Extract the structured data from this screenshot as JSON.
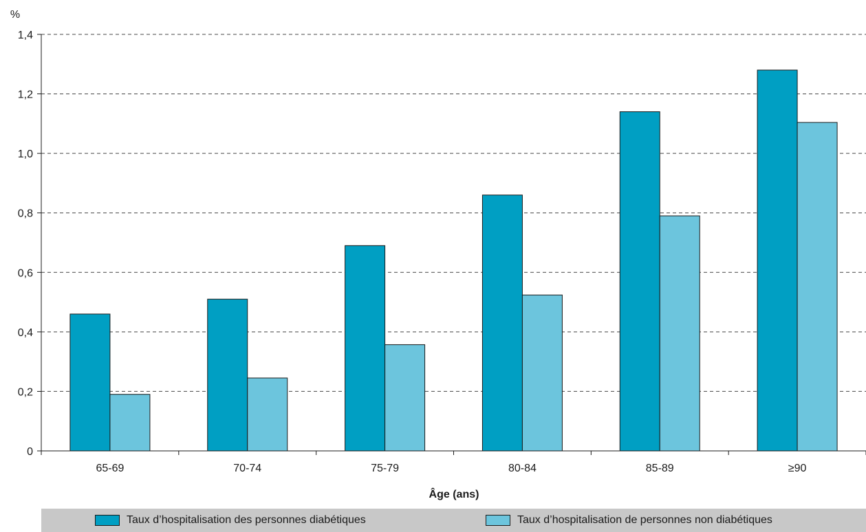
{
  "chart_data": {
    "type": "bar",
    "title": "",
    "xlabel": "Âge (ans)",
    "ylabel": "%",
    "categories": [
      "65-69",
      "70-74",
      "75-79",
      "80-84",
      "85-89",
      "≥90"
    ],
    "series": [
      {
        "name": "Taux d’hospitalisation des personnes diabétiques",
        "color": "#009fc3",
        "values": [
          0.46,
          0.51,
          0.69,
          0.86,
          1.14,
          1.28
        ]
      },
      {
        "name": "Taux d’hospitalisation de personnes non diabétiques",
        "color": "#6cc5dd",
        "values": [
          0.19,
          0.245,
          0.357,
          0.524,
          0.79,
          1.104
        ]
      }
    ],
    "ylim": [
      0,
      1.4
    ],
    "yticks": [
      "0",
      "0,2",
      "0,4",
      "0,6",
      "0,8",
      "1,0",
      "1,2",
      "1,4"
    ],
    "grid": "dashed horizontal",
    "legend_position": "bottom"
  }
}
